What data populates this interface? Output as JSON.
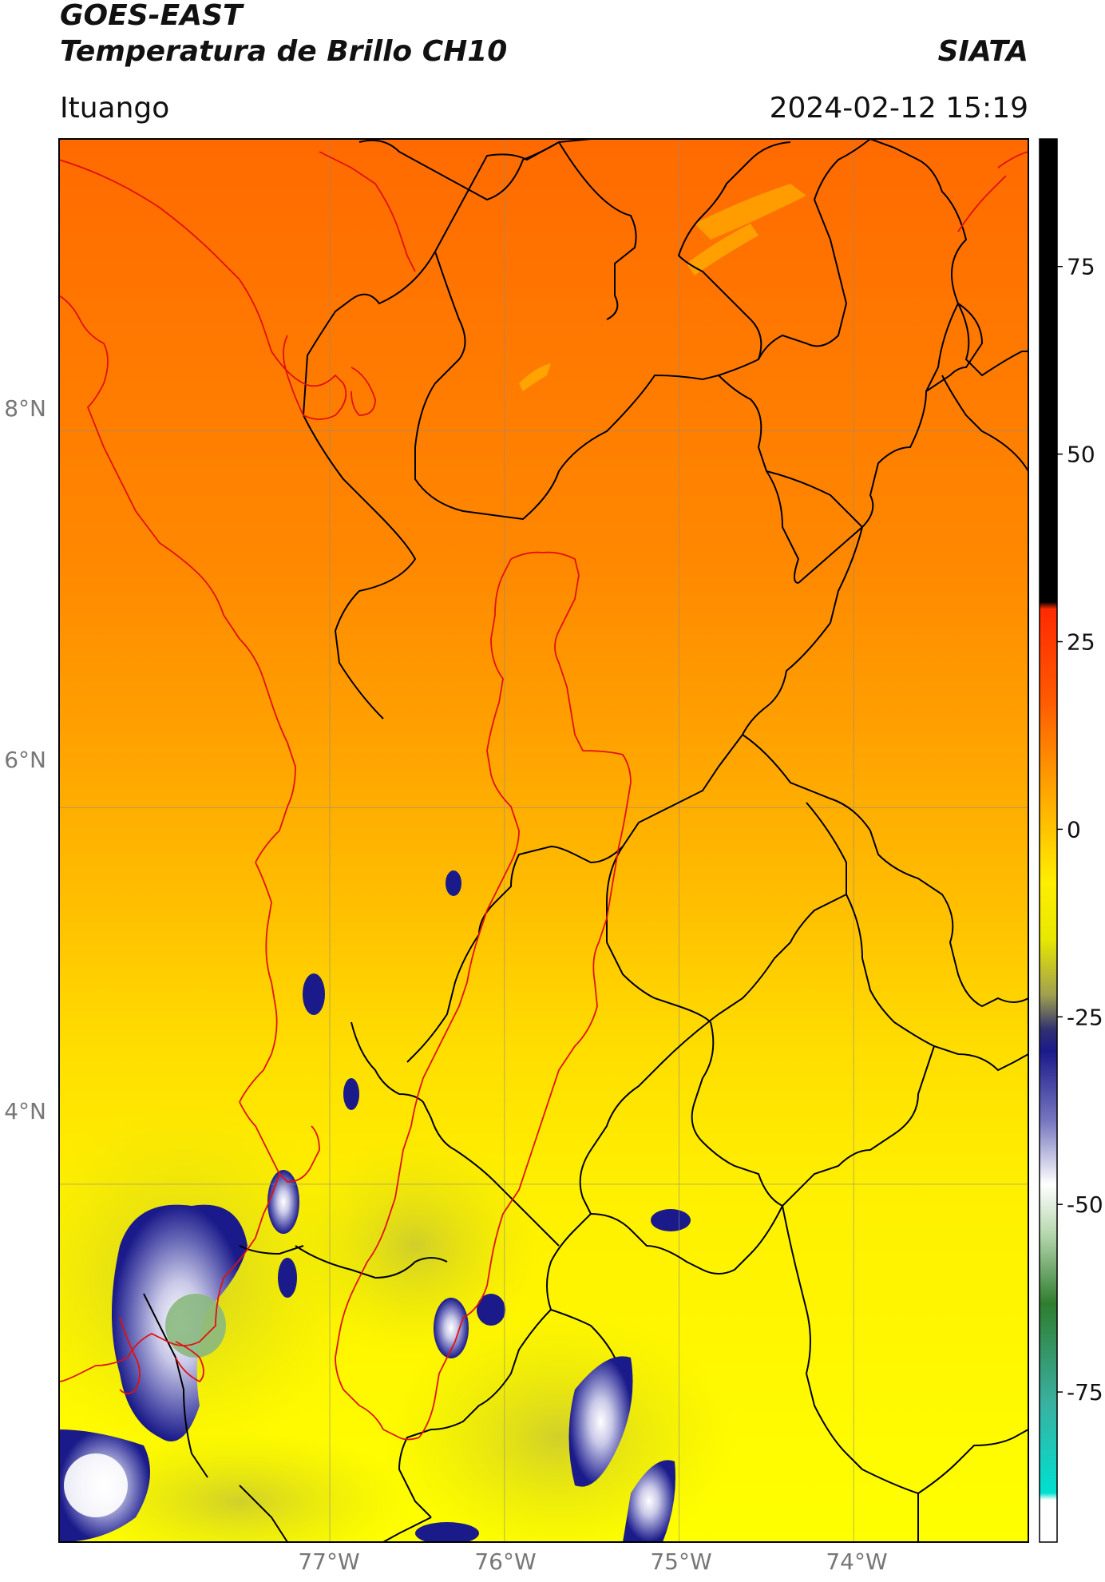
{
  "header": {
    "satellite": "GOES-EAST",
    "product": "Temperatura de Brillo CH10",
    "brand": "SIATA",
    "region": "Ituango",
    "datetime": "2024-02-12 15:19"
  },
  "map": {
    "extent": {
      "lon_min": -78.55,
      "lon_max": -73.0,
      "lat_min": 2.1,
      "lat_max": 9.55
    },
    "lat_labels": [
      "8°N",
      "6°N",
      "4°N"
    ],
    "lon_labels": [
      "77°W",
      "76°W",
      "75°W",
      "74°W"
    ],
    "graticule_lats": [
      8,
      6,
      4
    ],
    "graticule_lons": [
      -77,
      -76,
      -75,
      -74
    ],
    "gridlines": true,
    "border_color": "#000000",
    "basin_outline_color": "#ee1111"
  },
  "colorbar": {
    "ticks": [
      "75",
      "50",
      "25",
      "0",
      "-25",
      "-50",
      "-75"
    ],
    "range": [
      -95,
      92
    ],
    "colors": [
      "#000000",
      "#ff2a00",
      "#ff7a00",
      "#ffb300",
      "#ffe600",
      "#ffff00",
      "#c8c832",
      "#1a1a8a",
      "#b4b4dc",
      "#ffffff",
      "#2f7d2f",
      "#00e0d0"
    ]
  }
}
